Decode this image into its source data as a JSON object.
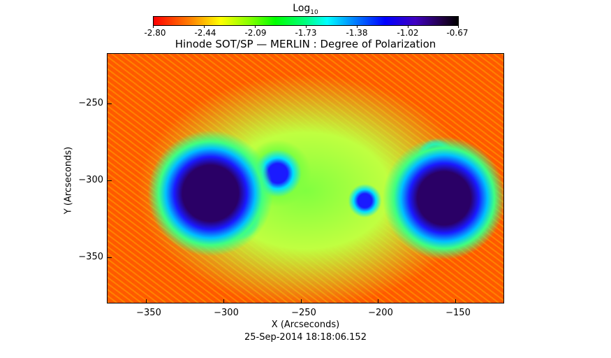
{
  "colorbar": {
    "label_main": "Log",
    "label_sub": "10",
    "ticks": [
      "-2.80",
      "-2.44",
      "-2.09",
      "-1.73",
      "-1.38",
      "-1.02",
      "-0.67"
    ],
    "colormap": [
      "#ff0000",
      "#ff8000",
      "#ffff00",
      "#00ff00",
      "#00ffff",
      "#0000ff",
      "#4000c0",
      "#000000"
    ]
  },
  "title": "Hinode SOT/SP — MERLIN : Degree of Polarization",
  "x_axis": {
    "label": "X (Arcseconds)",
    "ticks": [
      "−350",
      "−300",
      "−250",
      "−200",
      "−150"
    ]
  },
  "y_axis": {
    "label": "Y (Arcseconds)",
    "ticks": [
      "−250",
      "−300",
      "−350"
    ]
  },
  "timestamp": "25-Sep-2014 18:18:06.152"
}
